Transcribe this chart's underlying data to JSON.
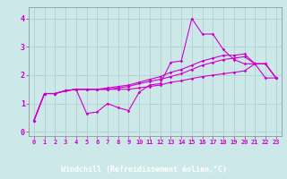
{
  "xlabel": "Windchill (Refroidissement éolien,°C)",
  "background_color": "#cce8e8",
  "plot_bg_color": "#cce8e8",
  "grid_color": "#aacccc",
  "line_color": "#cc00cc",
  "bottom_bar_color": "#660066",
  "xlim": [
    -0.5,
    23.5
  ],
  "ylim": [
    -0.15,
    4.4
  ],
  "yticks": [
    0,
    1,
    2,
    3,
    4
  ],
  "xticks": [
    0,
    1,
    2,
    3,
    4,
    5,
    6,
    7,
    8,
    9,
    10,
    11,
    12,
    13,
    14,
    15,
    16,
    17,
    18,
    19,
    20,
    21,
    22,
    23
  ],
  "xtick_labels": [
    "0",
    "1",
    "2",
    "3",
    "4",
    "5",
    "6",
    "7",
    "8",
    "9",
    "10",
    "11",
    "12",
    "13",
    "14",
    "15",
    "16",
    "17",
    "18",
    "19",
    "20",
    "21",
    "22",
    "23"
  ],
  "series": [
    [
      0.4,
      1.35,
      1.35,
      1.45,
      1.5,
      0.65,
      0.7,
      1.0,
      0.85,
      0.75,
      1.4,
      1.65,
      1.7,
      2.45,
      2.5,
      4.0,
      3.45,
      3.45,
      2.9,
      2.55,
      2.4,
      2.4,
      1.9,
      1.9
    ],
    [
      0.4,
      1.35,
      1.35,
      1.45,
      1.5,
      1.5,
      1.5,
      1.55,
      1.6,
      1.65,
      1.75,
      1.85,
      1.95,
      2.1,
      2.2,
      2.35,
      2.5,
      2.6,
      2.7,
      2.7,
      2.75,
      2.4,
      2.4,
      1.9
    ],
    [
      0.4,
      1.35,
      1.35,
      1.45,
      1.5,
      1.5,
      1.5,
      1.5,
      1.55,
      1.6,
      1.7,
      1.78,
      1.85,
      1.95,
      2.05,
      2.2,
      2.35,
      2.45,
      2.55,
      2.6,
      2.65,
      2.4,
      2.4,
      1.9
    ],
    [
      0.4,
      1.35,
      1.35,
      1.45,
      1.5,
      1.5,
      1.5,
      1.5,
      1.5,
      1.5,
      1.55,
      1.6,
      1.65,
      1.75,
      1.8,
      1.88,
      1.95,
      2.0,
      2.05,
      2.1,
      2.15,
      2.4,
      2.4,
      1.9
    ]
  ],
  "figwidth": 3.2,
  "figheight": 2.0,
  "dpi": 100
}
